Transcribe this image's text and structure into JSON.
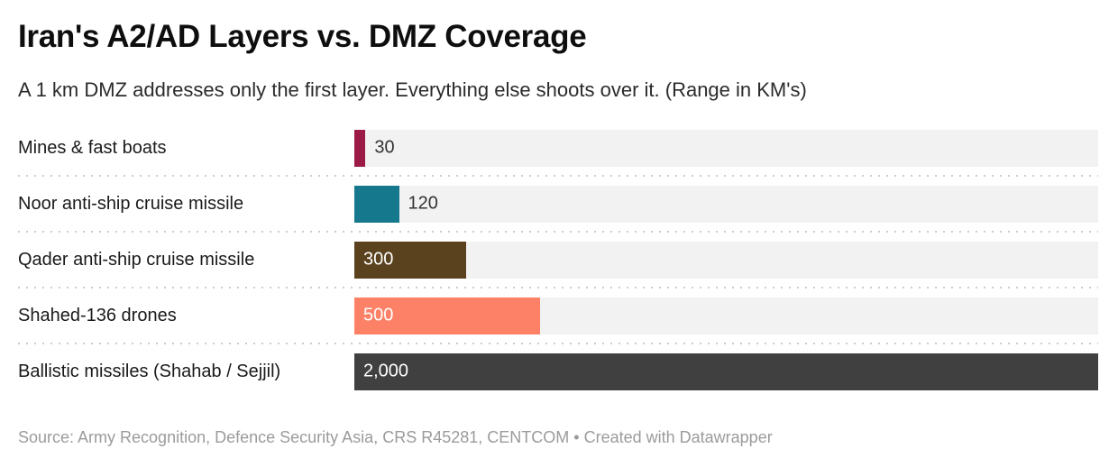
{
  "title": "Iran's A2/AD Layers vs. DMZ Coverage",
  "subtitle": "A 1 km DMZ addresses only the first layer. Everything else shoots over it. (Range in KM's)",
  "footer": {
    "source": "Source: Army Recognition, Defence Security Asia, CRS R45281, CENTCOM",
    "separator": "•",
    "credit": "Created with Datawrapper"
  },
  "chart_data": {
    "type": "bar",
    "orientation": "horizontal",
    "title": "Iran's A2/AD Layers vs. DMZ Coverage",
    "subtitle": "A 1 km DMZ addresses only the first layer. Everything else shoots over it. (Range in KM's)",
    "unit": "km",
    "xmax": 2000,
    "grid": false,
    "legend": false,
    "categories": [
      "Mines & fast boats",
      "Noor anti-ship cruise missile",
      "Qader anti-ship cruise missile",
      "Shahed-136 drones",
      "Ballistic missiles (Shahab / Sejjil)"
    ],
    "values": [
      30,
      120,
      300,
      500,
      2000
    ],
    "value_labels": [
      "30",
      "120",
      "300",
      "500",
      "2,000"
    ],
    "value_label_positions": [
      "outside",
      "outside",
      "inside",
      "inside",
      "inside"
    ],
    "bar_colors": [
      "#9b1b46",
      "#15788c",
      "#5b421e",
      "#fd8166",
      "#404040"
    ],
    "track_color": "#f2f2f2"
  }
}
